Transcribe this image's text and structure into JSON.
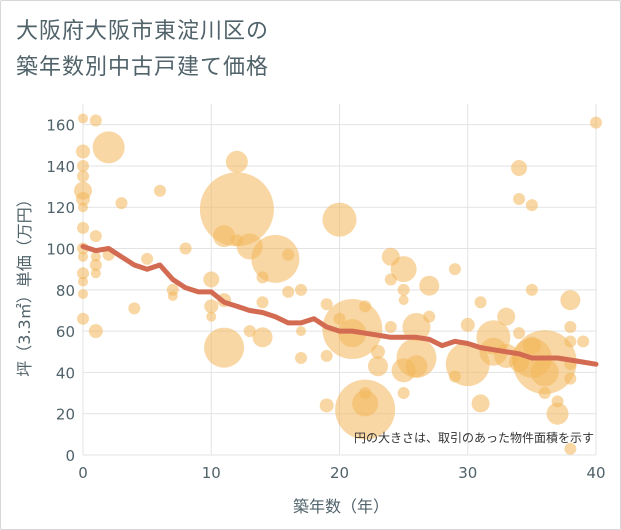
{
  "title": {
    "line1": "大阪府大阪市東淀川区の",
    "line2": "築年数別中古戸建て価格"
  },
  "note": "円の大きさは、取引のあった物件面積を示す",
  "colors": {
    "bubble_fill": "#f2b75a",
    "bubble_opacity": 0.55,
    "trend_line": "#d36b52",
    "grid": "#e3e3e3",
    "text": "#50626a"
  },
  "chart_data": {
    "type": "scatter",
    "title": "大阪府大阪市東淀川区の築年数別中古戸建て価格",
    "xlabel": "築年数（年）",
    "ylabel": "坪（3.3㎡）単価（万円）",
    "xlim": [
      0,
      40
    ],
    "ylim": [
      0,
      170
    ],
    "x_ticks": [
      0,
      10,
      20,
      30,
      40
    ],
    "y_ticks": [
      0,
      20,
      40,
      60,
      80,
      100,
      120,
      140,
      160
    ],
    "grid": true,
    "bubble_size_meaning": "物件面積",
    "bubbles": [
      {
        "x": 0,
        "y": 163,
        "s": 5
      },
      {
        "x": 1,
        "y": 162,
        "s": 6
      },
      {
        "x": 0,
        "y": 147,
        "s": 7
      },
      {
        "x": 0,
        "y": 140,
        "s": 6
      },
      {
        "x": 0,
        "y": 135,
        "s": 6
      },
      {
        "x": 0,
        "y": 128,
        "s": 9
      },
      {
        "x": 0,
        "y": 124,
        "s": 7
      },
      {
        "x": 0,
        "y": 120,
        "s": 5
      },
      {
        "x": 0,
        "y": 110,
        "s": 6
      },
      {
        "x": 0,
        "y": 100,
        "s": 6
      },
      {
        "x": 0,
        "y": 96,
        "s": 5
      },
      {
        "x": 0,
        "y": 88,
        "s": 6
      },
      {
        "x": 0,
        "y": 84,
        "s": 5
      },
      {
        "x": 0,
        "y": 78,
        "s": 5
      },
      {
        "x": 0,
        "y": 66,
        "s": 6
      },
      {
        "x": 1,
        "y": 106,
        "s": 6
      },
      {
        "x": 1,
        "y": 96,
        "s": 5
      },
      {
        "x": 1,
        "y": 92,
        "s": 6
      },
      {
        "x": 1,
        "y": 88,
        "s": 5
      },
      {
        "x": 1,
        "y": 60,
        "s": 7
      },
      {
        "x": 2,
        "y": 149,
        "s": 16
      },
      {
        "x": 2,
        "y": 97,
        "s": 6
      },
      {
        "x": 3,
        "y": 122,
        "s": 6
      },
      {
        "x": 4,
        "y": 71,
        "s": 6
      },
      {
        "x": 5,
        "y": 95,
        "s": 6
      },
      {
        "x": 6,
        "y": 128,
        "s": 6
      },
      {
        "x": 7,
        "y": 80,
        "s": 6
      },
      {
        "x": 7,
        "y": 77,
        "s": 5
      },
      {
        "x": 8,
        "y": 100,
        "s": 6
      },
      {
        "x": 10,
        "y": 85,
        "s": 8
      },
      {
        "x": 10,
        "y": 72,
        "s": 7
      },
      {
        "x": 10,
        "y": 67,
        "s": 5
      },
      {
        "x": 11,
        "y": 75,
        "s": 7
      },
      {
        "x": 11,
        "y": 52,
        "s": 20
      },
      {
        "x": 11,
        "y": 106,
        "s": 11
      },
      {
        "x": 12,
        "y": 142,
        "s": 11
      },
      {
        "x": 12,
        "y": 119,
        "s": 37
      },
      {
        "x": 12,
        "y": 104,
        "s": 6
      },
      {
        "x": 13,
        "y": 101,
        "s": 13
      },
      {
        "x": 13,
        "y": 60,
        "s": 6
      },
      {
        "x": 14,
        "y": 74,
        "s": 6
      },
      {
        "x": 14,
        "y": 86,
        "s": 6
      },
      {
        "x": 14,
        "y": 57,
        "s": 10
      },
      {
        "x": 15,
        "y": 95,
        "s": 24
      },
      {
        "x": 16,
        "y": 97,
        "s": 6
      },
      {
        "x": 16,
        "y": 79,
        "s": 6
      },
      {
        "x": 17,
        "y": 80,
        "s": 6
      },
      {
        "x": 17,
        "y": 60,
        "s": 5
      },
      {
        "x": 17,
        "y": 47,
        "s": 6
      },
      {
        "x": 19,
        "y": 73,
        "s": 6
      },
      {
        "x": 19,
        "y": 48,
        "s": 6
      },
      {
        "x": 19,
        "y": 24,
        "s": 7
      },
      {
        "x": 20,
        "y": 114,
        "s": 17
      },
      {
        "x": 20,
        "y": 66,
        "s": 6
      },
      {
        "x": 21,
        "y": 61,
        "s": 30
      },
      {
        "x": 21,
        "y": 59,
        "s": 14
      },
      {
        "x": 22,
        "y": 72,
        "s": 6
      },
      {
        "x": 22,
        "y": 22,
        "s": 30
      },
      {
        "x": 22,
        "y": 25,
        "s": 13
      },
      {
        "x": 22,
        "y": 30,
        "s": 6
      },
      {
        "x": 23,
        "y": 50,
        "s": 7
      },
      {
        "x": 23,
        "y": 43,
        "s": 10
      },
      {
        "x": 24,
        "y": 96,
        "s": 9
      },
      {
        "x": 24,
        "y": 85,
        "s": 6
      },
      {
        "x": 24,
        "y": 62,
        "s": 6
      },
      {
        "x": 25,
        "y": 90,
        "s": 13
      },
      {
        "x": 25,
        "y": 80,
        "s": 6
      },
      {
        "x": 25,
        "y": 75,
        "s": 5
      },
      {
        "x": 25,
        "y": 41,
        "s": 12
      },
      {
        "x": 25,
        "y": 30,
        "s": 6
      },
      {
        "x": 26,
        "y": 62,
        "s": 14
      },
      {
        "x": 26,
        "y": 47,
        "s": 20
      },
      {
        "x": 26,
        "y": 43,
        "s": 11
      },
      {
        "x": 27,
        "y": 82,
        "s": 10
      },
      {
        "x": 27,
        "y": 67,
        "s": 6
      },
      {
        "x": 29,
        "y": 90,
        "s": 6
      },
      {
        "x": 29,
        "y": 38,
        "s": 6
      },
      {
        "x": 30,
        "y": 63,
        "s": 7
      },
      {
        "x": 30,
        "y": 44,
        "s": 22
      },
      {
        "x": 31,
        "y": 74,
        "s": 6
      },
      {
        "x": 31,
        "y": 25,
        "s": 9
      },
      {
        "x": 32,
        "y": 57,
        "s": 17
      },
      {
        "x": 32,
        "y": 50,
        "s": 14
      },
      {
        "x": 33,
        "y": 67,
        "s": 9
      },
      {
        "x": 33,
        "y": 48,
        "s": 12
      },
      {
        "x": 34,
        "y": 139,
        "s": 8
      },
      {
        "x": 34,
        "y": 124,
        "s": 6
      },
      {
        "x": 34,
        "y": 59,
        "s": 6
      },
      {
        "x": 34,
        "y": 45,
        "s": 10
      },
      {
        "x": 35,
        "y": 121,
        "s": 6
      },
      {
        "x": 35,
        "y": 80,
        "s": 6
      },
      {
        "x": 35,
        "y": 53,
        "s": 9
      },
      {
        "x": 35,
        "y": 47,
        "s": 20
      },
      {
        "x": 36,
        "y": 45,
        "s": 32
      },
      {
        "x": 36,
        "y": 40,
        "s": 14
      },
      {
        "x": 36,
        "y": 30,
        "s": 6
      },
      {
        "x": 37,
        "y": 20,
        "s": 11
      },
      {
        "x": 37,
        "y": 26,
        "s": 6
      },
      {
        "x": 38,
        "y": 75,
        "s": 10
      },
      {
        "x": 38,
        "y": 62,
        "s": 6
      },
      {
        "x": 38,
        "y": 55,
        "s": 6
      },
      {
        "x": 38,
        "y": 44,
        "s": 6
      },
      {
        "x": 38,
        "y": 37,
        "s": 6
      },
      {
        "x": 38,
        "y": 3,
        "s": 6
      },
      {
        "x": 39,
        "y": 55,
        "s": 6
      },
      {
        "x": 40,
        "y": 161,
        "s": 6
      }
    ],
    "trend": {
      "x": [
        0,
        1,
        2,
        3,
        4,
        5,
        6,
        7,
        8,
        9,
        10,
        11,
        12,
        13,
        14,
        15,
        16,
        17,
        18,
        19,
        20,
        21,
        22,
        23,
        24,
        25,
        26,
        27,
        28,
        29,
        30,
        31,
        32,
        33,
        34,
        35,
        36,
        37,
        38,
        39,
        40
      ],
      "y": [
        101,
        99,
        100,
        96,
        92,
        90,
        92,
        85,
        81,
        79,
        79,
        74,
        72,
        70,
        69,
        67,
        64,
        64,
        66,
        62,
        60,
        60,
        59,
        58,
        57,
        57,
        57,
        56,
        53,
        55,
        54,
        52,
        51,
        50,
        49,
        47,
        47,
        47,
        46,
        45,
        44
      ]
    }
  }
}
